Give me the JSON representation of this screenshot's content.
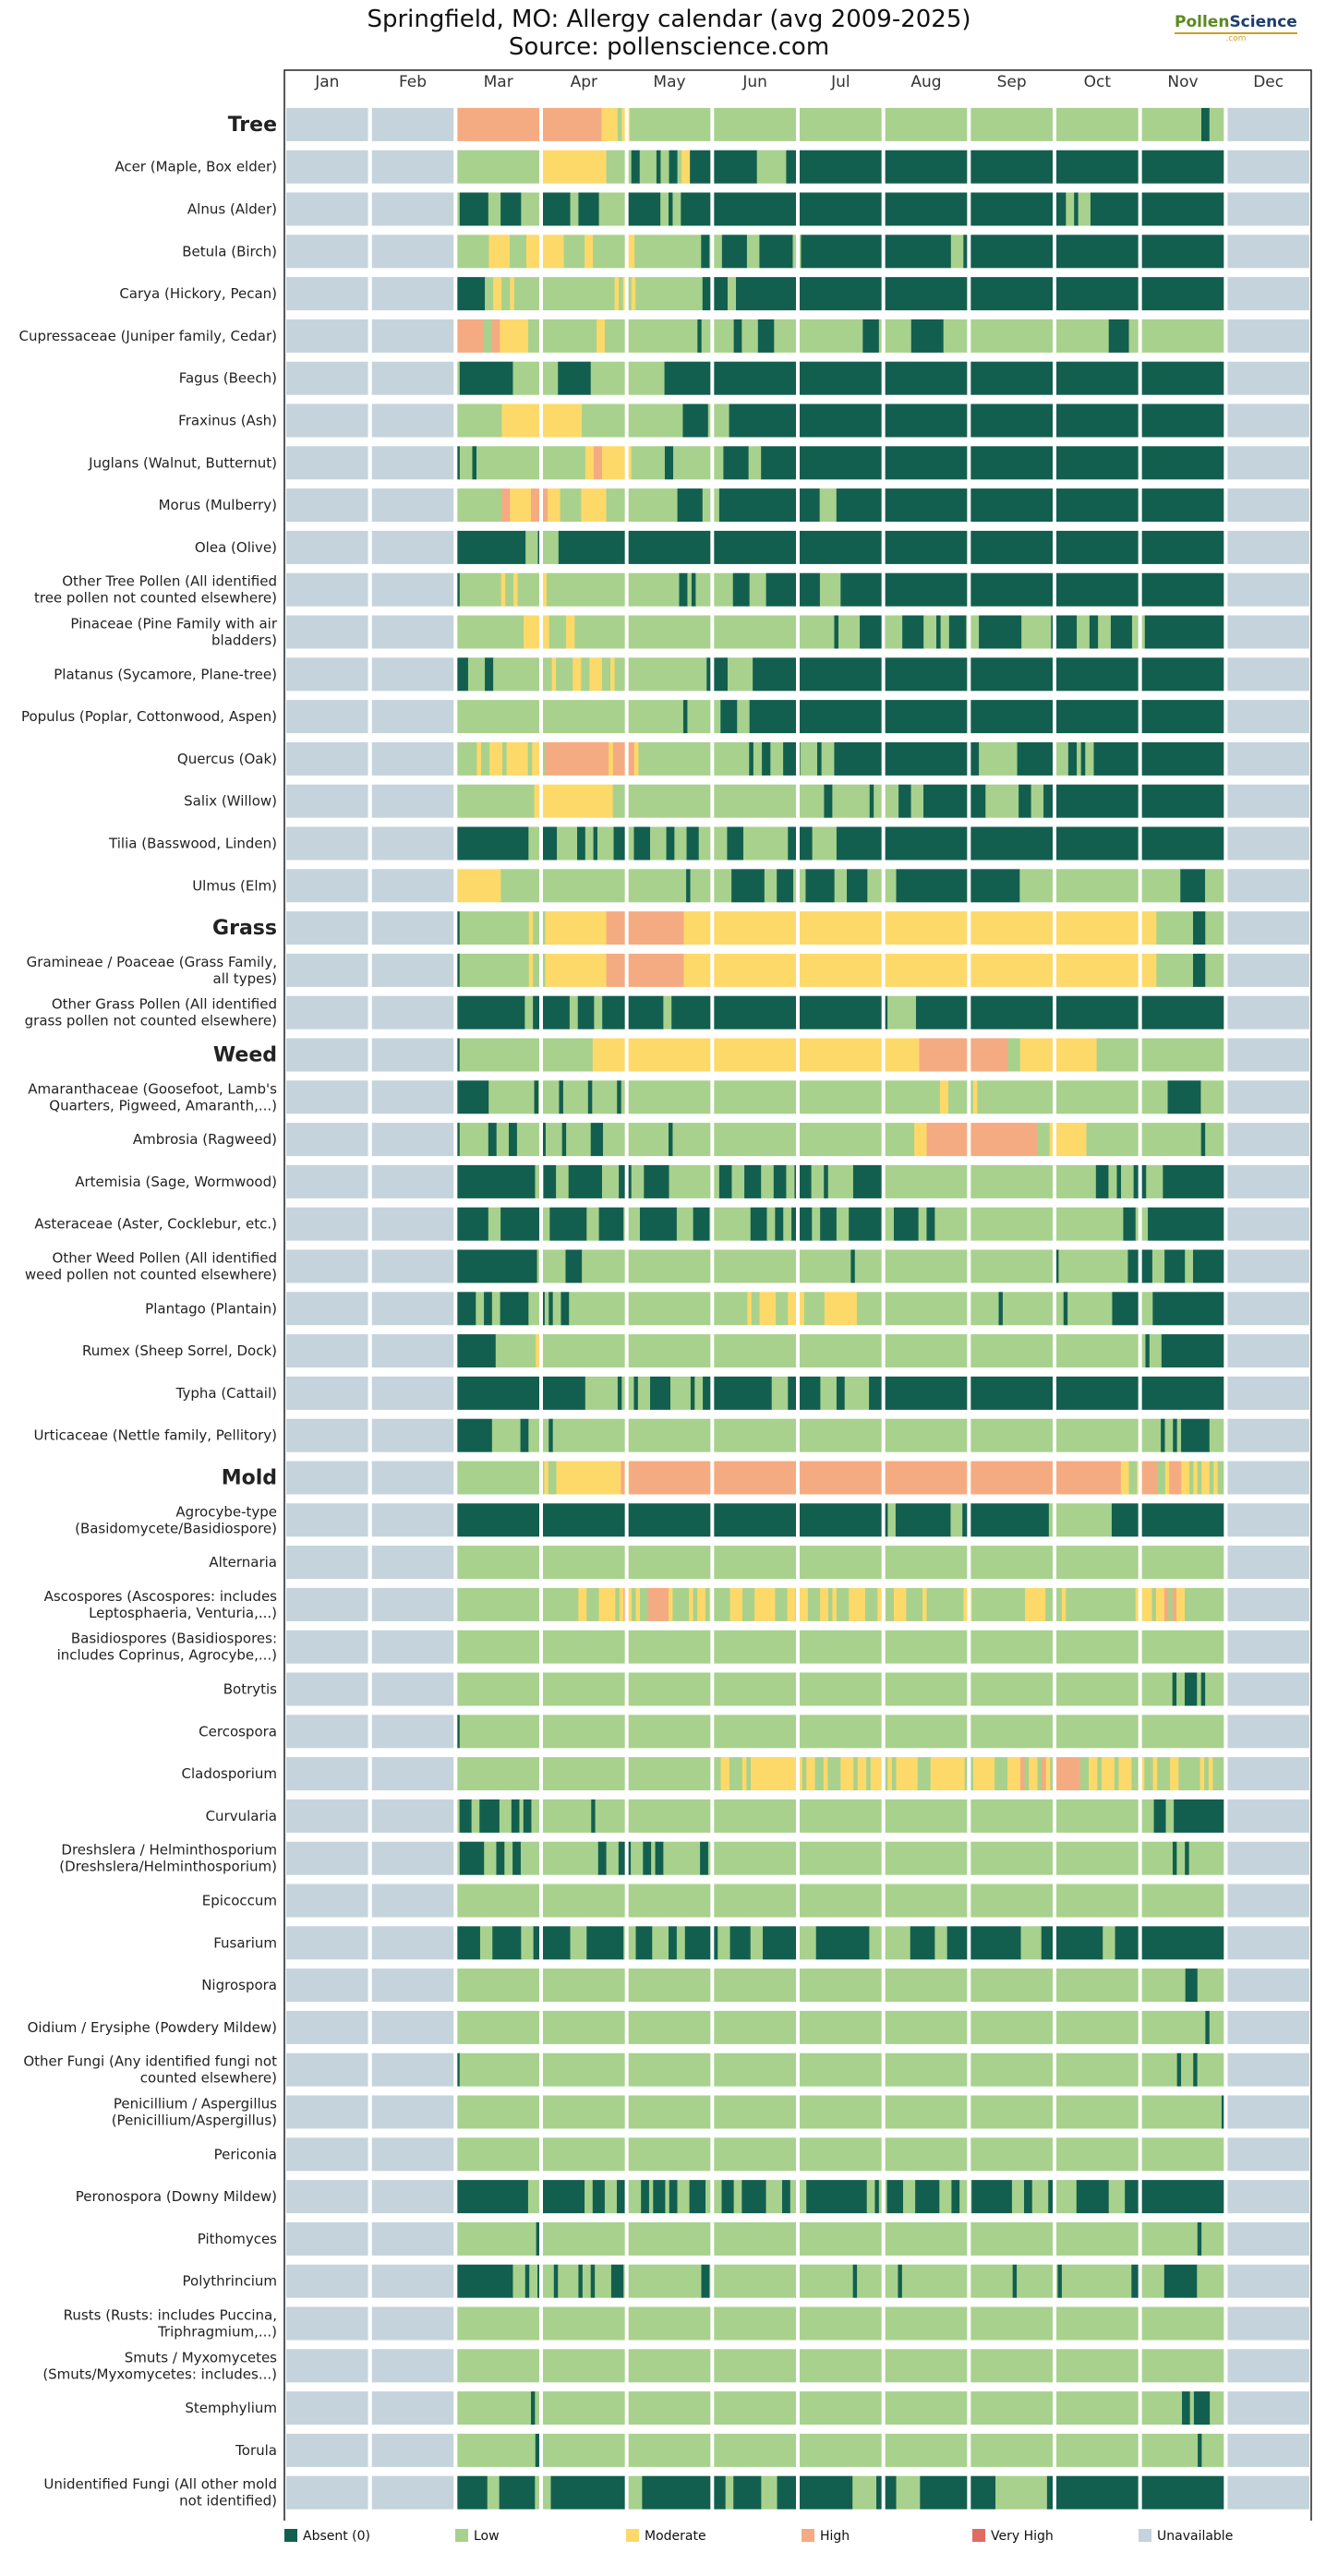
{
  "title": "Springfield, MO: Allergy calendar (avg 2009-2025)",
  "subtitle": "Source: pollenscience.com",
  "logo": {
    "part1": "Pollen",
    "part2": "Science",
    "sub": ".com"
  },
  "colors": {
    "absent": "#135f4f",
    "low": "#a8d18d",
    "moderate": "#fdd96a",
    "high": "#f5ab82",
    "very_high": "#e06b62",
    "unavailable": "#c5d3dc"
  },
  "chart_data": {
    "type": "heatmap",
    "x_labels": [
      "Jan",
      "Feb",
      "Mar",
      "Apr",
      "May",
      "Jun",
      "Jul",
      "Aug",
      "Sep",
      "Oct",
      "Nov",
      "Dec"
    ],
    "legend": [
      {
        "key": "absent",
        "label": "Absent (0)"
      },
      {
        "key": "low",
        "label": "Low"
      },
      {
        "key": "moderate",
        "label": "Moderate"
      },
      {
        "key": "high",
        "label": "High"
      },
      {
        "key": "very_high",
        "label": "Very High"
      },
      {
        "key": "unavailable",
        "label": "Unavailable"
      }
    ],
    "level_codes": {
      "A": "absent",
      "L": "low",
      "M": "moderate",
      "H": "high",
      "V": "very_high"
    },
    "data_start_month": "Mar",
    "data_end_month": "Nov",
    "rows": [
      {
        "label": "Tree",
        "category": true,
        "pattern": "HHHHHHHHHHHHHHHHHHHHHHHHHHHHHHHHHHHHMMMMLMMLLLLLLLLLLLLLLLLLLLLLLLLLLLLLLLLLLLLLLLLLLLLLLLLLLLLLLLLLLLLLLLLLLLLLLLLLLLLLLLLLLLLLLLLLLLLLLLLLLLLLLLLLLLLLLLLLLLLLLLLLLLLLLLLLLLLLLLLLLLLLAALLLL"
      },
      {
        "label": "Acer (Maple, Box elder)",
        "pattern": "LLLLLLLLLLLLLLLLLLLLMMMMMMMMMMMMMMMMLLLLLLAALLLLALLAALMMAAAAAAAAAAAAAAAALLLLLLLAAAAAAAAAAAAAAAAAAAAAAAAAAAAAAAAAAAAAAAAAAAAAAAAAAAAAAAAAAAAAAAAAAAAAAAAAAAAAAAAAAAAAAAAAAAAAAAAAAAAAAAAA"
      },
      {
        "label": "Alnus (Alder)",
        "pattern": "LAAAAAAALLLAAAAALLLLLAAAAAAALLAAAAALLLLLLLAAAAAAAALLALLAAAAAAAAAAAAAAAAAAAAAAAAAAAAAAAAAAAAAAAAAAAAAAAAAAAAAAAAAAAAAAAAAAAAAAAAAAAAAAAAAAAAAAAAAAAAAALLALLLAAAAAAAAAAAAAAAAAAAAAAAAAAAAAAAAA"
      },
      {
        "label": "Betula (Birch)",
        "pattern": "LLLLLLLLMMMMMLLLLMMMMMMMMMLLLLLMMLLLLLLLLMMLLLLLLLLLLLLLLLLAALLLAAAAAALLLAAAAAAAALLAAAAAAAAAAAAAAAAAAAAAAAAAAAAAAAAAAAALLLAAAAAAAAAAAAAAAAAAAAAAAAAAAAAAAAAAAAAAAAAAAAAAAAAAAAAAAAAAAAAAA"
      },
      {
        "label": "Carya (Hickory, Pecan)",
        "pattern": "AAAAAAALLMMLLMLLLLLLLLLLLLLLLLLLLLLLLLMLMLMLLLLLLLLLLLLLLLLAAAAAALLAAAAAAAAAAAAAAAAAAAAAAAAAAAAAAAAAAAAAAAAAAAAAAAAAAAAAAAAAAAAAAAAAAAAAAAAAAAAAAAAAAAAAAAAAAAAAAAAAAAAAAAAAAAAAAAAAAAAA"
      },
      {
        "label": "Cupressaceae (Juniper family, Cedar)",
        "pattern": "HHHHHHHLLHHMMMMMMMLLLLLLLLLLLLLLLLLMMLLLLLLLLLLLLLLLLLLLLLLLALLLLLLLLAALLLLAAAALLLLLLLLLLLLLLLLLLLLLLAAAALLLLLLLLAAAAAAAALLLLLLLLLLLLLLLLLLLLLLLLLLLLLLLLLLLLLLLLLAAAAALLLLLLLLLLLLLLLLLLLLLLLL"
      },
      {
        "label": "Fagus (Beech)",
        "pattern": "LAAAAAAAAAAAAALLLLLLLLLLLAAAAAAAALLLLLLLLLLLLLLLLLLAAAAAAAAAAAAAAAAAAAAAAAAAAAAAAAAAAAAAAAAAAAAAAAAAAAAAAAAAAAAAAAAAAAAAAAAAAAAAAAAAAAAAAAAAAAAAAAAAAAAAAAAAAAAAAAAAAAAAAAAAAAAAAAAAAAAAAAAA"
      },
      {
        "label": "Fraxinus (Ash)",
        "pattern": "LLLLLLLLLLLMMMMMMMMMMMMMMMMMMMLLLLLLLLLLLLLLLLLLLLLLLLAAAAAALLLLLAAAAAAAAAAAAAAAAAAAAAAAAAAAAAAAAAAAAAAAAAAAAAAAAAAAAAAAAAAAAAAAAAAAAAAAAAAAAAAAAAAAAAAAAAAAAAAAAAAAAAAAAAAAAAAAAAAAAAA"
      },
      {
        "label": "Juglans (Walnut, Butternut)",
        "pattern": "ALLLALLLLLLLLLLLLLLLLLLLLLLLLLLMMHHMMMMMMMLLLLLLLLAALLLLLLLLLLLLAAAAAALLLAAAAAAAAAAAAAAAAAAAAAAAAAAAAAAAAAAAAAAAAAAAAAAAAAAAAAAAAAAAAAAAAAAAAAAAAAAAAAAAAAAAAAAAAAAAAAAAAAAAAAAAAAAAAAAA"
      },
      {
        "label": "Morus (Mulberry)",
        "pattern": "LLLLLLLLLLLHHMMMMMHHHHMMMLLLLLMMMMMMLLLLLLLLLLLLLLLLLAAAAAALLLLAAAAAAAAAAAAAAAAAAAAAAAALLLLAAAAAAAAAAAAAAAAAAAAAAAAAAAAAAAAAAAAAAAAAAAAAAAAAAAAAAAAAAAAAAAAAAAAAAAAAAAAAAAAAAAAAAAAAAAAA"
      },
      {
        "label": "Olea (Olive)",
        "pattern": "AAAAAAAAAAAAAAAAALLLALLLLAAAAAAAAAAAAAAAAAAAAAAAAAAAAAAAAAAAAAAAAAAAAAAAAAAAAAAAAAAAAAAAAAAAAAAAAAAAAAAAAAAAAAAAAAAAAAAAAAAAAAAAAAAAAAAAAAAAAAAAAAAAAAAAAAAAAAAAAAAAAAAAAAAAAAAAAAAAAAAAAAA"
      },
      {
        "label": "Other Tree Pollen (All identified tree pollen not counted elsewhere)",
        "pattern": "ALLLLLLLLLLMLLMLLLLLLMLLLLLLLLLLLLLLLLLLLLLLLLLLLLLLLLAALALLLLLLLLLAAAALLLLAAAAAAAAAAAAALLLLLAAAAAAAAAAAAAAAAAAAAAAAAAAAAAAAAAAAAAAAAAAAAAAAAAAAAAAAAAAAAAAAAAAAAAAAAAAAAAAAAAAAAAAAAAAAAA"
      },
      {
        "label": "Pinaceae (Pine Family with air bladders)",
        "pattern": "LLLLLLLLLLLLLLLLMMMMMMLLLLMMLLLLLLLLLLLLLLLLLLLLLLLLLLLLLLLLLLLLLLLLLLLLLLLLLLLLLLLLLLLLLALLLLLAAAAAALLLLAAAAALLLALLAAAALLLAAAAAAAAAALLLLLLLAAAAAALLLAALLLAAAAALLLAAAAAAAAAAAAAAAAAAA"
      },
      {
        "label": "Platanus (Sycamore, Plane-tree)",
        "pattern": "AAALLLLAALLLLLLLLLLLLLLMLLLLMMLLMMMLLMLLLLLLLLLLLLLLLLLLLLLLAAAAALLLLLLAAAAAAAAAAAAAAAAAAAAAAAAAAAAAAAAAAAAAAAAAAAAAAAAAAAAAAAAAAAAAAAAAAAAAAAAAAAAAAAAAAAAAAAAAAAAAAAAAAAAAAAAAAAAAAAAA"
      },
      {
        "label": "Populus (Poplar, Cottonwood, Aspen)",
        "pattern": "LLLLLLLLLLLLLLLLLLLLLLLLLLLLLLLLLLLLLLLLLLLLLLLLLLLLLLLALLLLLLLLAAAALLLAAAAAAAAAAAAAAAAAAAAAAAAAAAAAAAAAAAAAAAAAAAAAAAAAAAAAAAAAAAAAAAAAAAAAAAAAAAAAAAAAAAAAAAAAAAAAAAAAAAAAAAAAAAAAAAAAAA"
      },
      {
        "label": "Quercus (Oak)",
        "pattern": "LLLLLMLLMMMLMMMMMLMMLHHHHHHHHHHHHHHHMHHHHHMLLLLLLLLLLLLLLLLLLLLLLLLLLALLAALLLAAAALLLLALLLAAAAAAAAAAAAAAAAAAAAAAAAAAAAAAAAAALLLLLLLLLAAAAAAAAALLLAALALLAAAAAAAAAAAAAAAAAAAAAAAAAAAAAAA"
      },
      {
        "label": "Salix (Willow)",
        "pattern": "LLLLLLLLLLLLLLLLLLLMMMMMMMMMMMMMMMMMMMLLLLLLLLLLLLLLLLLLLLLLLLLLLLLLLLLLLLLLLLLLLLLLLLLLLAALLLLLLLLLALLLLLLAAALLLAAAAAAAAAAAAAAALLLLLLLLAAALLLAAAAAAAAAAAAAAAAAAAAAAAAAAAAAAAAAAAAAAAAAAAA"
      },
      {
        "label": "Tilia (Basswood, Linden)",
        "pattern": "AAAAAAAAAAAAAAAAAALLLAAAALLLLLAALLALLLLAAALLAAAALLLLAALLLAAALLLLLLLAAAALLLLLLLLLLLAAAAAALLLLLLAAAAAAAAAAAAAAAAAAAAAAAAAAAAAAAAAAAAAAAAAAAAAAAAAAAAAAAAAAAAAAAAAAAAAAAAAAAAAAAAAAAAAAAAAAAAAAAA"
      },
      {
        "label": "Ulmus (Elm)",
        "pattern": "MMMMMMMMMMMLLLLLLLLLLLLLLLLLLLLLLLLLLLLLLLLLLLLLLLLLLLLLALLLLLLLLLLAAAAAAAALLLAAAALLLAAAAAAALLLAAAAALLLLLLLAAAAAAAAAAAAAAAAAAAAAAAAAAAAAALLLLLLLLLLLLLLLLLLLLLLLLLLLLLLLLLLLLLLLAAAAAALLLLL"
      },
      {
        "label": "Grass",
        "category": true,
        "pattern": "ALLLLLLLLLLLLLLLLLMLLLMMMMMMMMMMMMMMMHHHHHHHHHHHHHHHHHHHMMMMMMMMMMMMMMMMMMMMMMMMMMMMMMMMMMMMMMMMMMMMMMMMMMMMMMMMMMMMMMMMMMMMMMMMMMMMMMMMMMMMMMMMMMMMMMMMMMMMMMMMMMMMMMMMMMMMLLLLLLLLLAAALLLLL"
      },
      {
        "label": "Gramineae / Poaceae (Grass Family, all types)",
        "pattern": "ALLLLLLLLLLLLLLLLLMLLLMMMMMMMMMMMMMMMHHHHHHHHHHHHHHHHHHHMMMMMMMMMMMMMMMMMMMMMMMMMMMMMMMMMMMMMMMMMMMMMMMMMMMMMMMMMMMMMMMMMMMMMMMMMMMMMMMMMMMMMMMMMMMMMMMMMMMMMMMMMMMMMMMMMMMMLLLLLLLLLAAALLLLL"
      },
      {
        "label": "Other Grass Pollen (All identified grass pollen not counted elsewhere)",
        "pattern": "AAAAAAAAAAAAAAAAALLAAAAAAAAALLAAAALLAAAAAAAAAAAAAAALLAAAAAAAAAAAAAAAAAAAAAAAAAAAAAAAAAAAAAAAAAAAAAAAAAAAAALLLLLLLAAAAAAAAAAAAAAAAAAAAAAAAAAAAAAAAAAAAAAAAAAAAAAAAAAAAAAAAAAAAAAAAAAAAAAAAAAAA"
      },
      {
        "label": "Weed",
        "category": true,
        "pattern": "ALLLLLLLLLLLLLLLLLLLLLLLLLLLLLLLLLMMMMMMMMMMMMMMMMMMMMMMMMMMMMMMMMMMMMMMMMMMMMMMMMMMMMMMMMMMMMMMMMMMMMMMMMMMMMMMMMMHHHHHHHHHHHHHHHHHHHHHHLLLMMMMMMMMMMMMMMMMMMMLLLLLLLLLLLLLLLLLLLLLLLLLLLLLLLL"
      },
      {
        "label": "Amaranthaceae (Goosefoot, Lamb's Quarters, Pigweed, Amaranth,...)",
        "pattern": "AAAAAAAALLLLLLLLLLLALLLLLALLLLLLALLLLLLALLLLLLLLLLLLLLLLLLLLLLLLLLLLLLLLLLLLLLLLLLLLLLLLLLLLLLLLLLLLLLLLLLLLLLLLLLLLLMMLLLLLLMLLLLLLLLLLLLLLLLLLLLLLLLLLLLLLLLLLLLLLLLLLLLLLAAAAAAAALLLLLL"
      },
      {
        "label": "Ambrosia (Ragweed)",
        "pattern": "ALLLLLLLAALLLAALLLLLLALLLLALLLLLLAAALLLLLLLLLLLLLLLLALLLLLLLLLLLLLLLLLLLLLLLLLLLLLLLLLLLLLLLLLLLLLLLLLLLLLLLLLLLMMMHHHHHHHHHHHHHHHHHHHHHHHHHHHLLLMMMMMMMMMLLLLLLLLLLLLLLLLLLLLLLLLLLLLALLLLL"
      },
      {
        "label": "Artemisia (Sage, Wormwood)",
        "pattern": "AAAAAAAAAAAAAAAAAAALLAAALLLAAAAAAAALLLLAAALLLAAAAAALLLLLLLLLLLLAAALLLAAAALLLAAALLAAAALLLALLLLLLAAAAAAALLLLLLLLLLLLLLLLLLLLLLLLLLLLLLLLLLLLLLLLLLLLLLLLLLLAAALLALLLAAALLLLAAAAAAAAAAAAAAA"
      },
      {
        "label": "Asteraceae (Aster, Cocklebur, etc.)",
        "pattern": "AAAAAAAALLLAAAAAAAAAALLAAAAAAAAALLLAAAAAALLLLAAAAAAAAALLLLAAAALLLLLLLLLLAAAALLAALLAAAAALLAAAALLLAAAAAAAALLLAAAAAALLAALLLLLLLLLLLLLLLLLLLLLLLLLLLLLLLLLLLLLLLLLLLLLLAAALLLAAAAAAAAAAAAAAAAAAA"
      },
      {
        "label": "Other Weed Pollen (All identified weed pollen not counted elsewhere)",
        "pattern": "AAAAAAAAAAAAAAAAAAAALLLLLLLAAAALLLLLLLLLLLLLLLLLLLLLLLLLLLLLLLLLLLLLLLLLLLLLLLLLLLLLLLLLLLLLLLLLLALLLLLLLLLLLLLLLLLLLLLLLLLLLLLLLLLLLLLLLLLLLLLLLLLALLLLLLLLLLLLLLLLLAAAAAALLLAAAAALLAAAAAAAA"
      },
      {
        "label": "Plantago (Plantain)",
        "pattern": "AAAAALLAALLAAAAAAALLLALALLAALLLLLLLLLLLLLLLLLLLLLLLLLLLLLLLLLLLLLLLLLLLLMLLMMMMLLLMMMMLLLLLMMMMMMMMLLLLLLLLLLLLLLLLLLLLLLLLLLLLLLLLLLLALLLLLLLLLLLLLLLALLLLLLLLLLLAAAAAAALLLAAAAAAAAAAAAAAAAAA"
      },
      {
        "label": "Rumex (Sheep Sorrel, Dock)",
        "pattern": "AAAAAAAAAALLLLLLLLLLMLLLLLLLLLLLLLLLLLLLLLLLLLLLLLLLLLLLLLLLLLLLLLLLLLLLLLLLLLLLLLLLLLLLLLLLLLLLLLLLLLLLLLLLLLLLLLLLLLLLLLLLLLLLLLLLLLLLLLLLLLLLLLLLLLLLLLLLLLLLLLLLLLLLLLLLALLLAAAAAAAAAAAAAAAA"
      },
      {
        "label": "Typha (Cattail)",
        "pattern": "AAAAAAAAAAAAAAAAAAAAAAAAAAAAAAAALLLLLLLLALLLALLLAAAAALLLLLALLAAAAAAAAAAAAAAAAALLLLAAAAAAAALLLLAALLLLLLAAAAAAAAAAAAAAAAAAAAAAAAAAAAAAAAAAAAAAAAAAAAAAAAAAAAAAAAAAAAAAAAAAAAAAAAAAAAAAAAAAAAAAAA"
      },
      {
        "label": "Urticaceae (Nettle family, Pellitory)",
        "pattern": "AAAAAAAAALLLLLLLAALLLLLALLLLLLLLLLLLLLLLLLLLLLLLLLLLLLLLLLLLLLLLLLLLLLLLLLLLLLLLLLLLLLLLLLLLLLLLLLLLLLLLLLLLLLLLLLLLLLLLLLLLLLLLLLLLLLLLLLLLLLLLLLLLLLLLLLLLLLLLLLLLLLLLLLLLLLALLALAAAAAAALLLL"
      },
      {
        "label": "Mold",
        "category": true,
        "pattern": "LLLLLLLLLLLLLLLLLLLLLLMLLMMMMMMMMMMMMMMMMHMHHHHHHHHHHHHHHHHHHHHHHHHHHHHHHHHHHHHHHHHHHHHHHHHHHHHHHHHHHHHHHHHHHHHHHHHHHHHHHHHHHHHHHHHHHHHHHHHHHHHHHHHHHHHHHHHHHHHHHHHHHMMLLMHHHHLLMHHHMMLMLMMLMLL"
      },
      {
        "label": "Agrocybe-type (Basidomycete/Basidiospore)",
        "pattern": "AAAAAAAAAAAAAAAAAAAAAAAAAAAAAAAAAAAAAAAAAAAAAAAAAAAAAAAAAAAAAAAAAAAAAAAAAAAAAAAAAAAAAAAAAAAAAAAAAAAAAAAAAAAAAALLAAAAAAAAAAAAAALLLAAAAAAAAAAAAAAAAAAAAAALLLLLLLLLLLLLLLLAAAAAAAAAAAAAAAAAAAAAAAAAAAAA"
      },
      {
        "label": "Alternaria",
        "pattern": "LLLLLLLLLLLLLLLLLLLLLLLLLLLLLLLLLLLLLLLLLLLLLLLLLLLLLLLLLLLLLLLLLLLLLLLLLLLLLLLLLLLLLLLLLLLLLLLLLLLLLLLLLLLLLLLLLLLLLLLLLLLLLLLLLLLLLLLLLLLLLLLLLLLLLLLLLLLLLLLLLLLLLLLLLLLLLLLLLLLLLLLLLLLL"
      },
      {
        "label": "Ascospores (Ascospores: includes Leptosphaeria, Venturia,...)",
        "pattern": "LLLLLLLLLLLLLLLLLLLLLLLLLLLLLLMMLLLMMMMLMHMLMLLHHHHHMLLLLMLMMLMLLLLMMMLLLMMMMMLLLMMLMMLLLMMLMLLLMMMMLLLMMLLMMMLLLLMLLLLLLLLLMMLLLLLLLLLLLLLMMMMMLLLLMLLLLLLLLLLLLLLLLLMMMMLMMHLHMMLLLLLLLLLL"
      },
      {
        "label": "Basidiospores (Basidiospores: includes Coprinus, Agrocybe,...)",
        "pattern": "LLLLLLLLLLLLLLLLLLLLLLLLLLLLLLLLLLLLLLLLLLLLLLLLLLLLLLLLLLLLLLLLLLLLLLLLLLLLLLLLLLLLLLLLLLLLLLLLLLLLLLLLLLLLLLLLLLLLLLLLLLLLLLLLLLLLLLLLLLLLLLLLLLLLLLLLLLLLLLLLLLLLLLLLLLLLLLLLLLLLLLLLLLLL"
      },
      {
        "label": "Botrytis",
        "pattern": "LLLLLLLLLLLLLLLLLLLLLLLLLLLLLLLLLLLLLLLLLLLLLLLLLLLLLLLLLLLLLLLLLLLLLLLLLLLLLLLLLLLLLLLLLLLLLLLLLLLLLLLLLLLLLLLLLLLLLLLLLLLLLLLLLLLLLLLLLLLLLLLLLLLLLLLLLLLLLLLLLLLLLLLLLLLLLLLALLAAALALLLLL"
      },
      {
        "label": "Cercospora",
        "pattern": "ALLLLLLLLLLLLLLLLLLLLLLLLLLLLLLLLLLLLLLLLLLLLLLLLLLLLLLLLLLLLLLLLLLLLLLLLLLLLLLLLLLLLLLLLLLLLLLLLLLLLLLLLLLLLLLLLLLLLLLLLLLLLLLLLLLLLLLLLLLLLLLLLLLLLLLLLLLLLLLLLLLLLLLLLLLLLLLLLLLLLLLLLLLLL"
      },
      {
        "label": "Cladosporium",
        "pattern": "LLLLLLLLLLLLLLLLLLLLLLLLLLLLLLLLLLLLLLLLLLLLLLLLLLLLLLLLLLLLLLMMLLLMLMMMMMMMMMMMMLMMLLMLLLMMMLMMLMMMLMLMMMMMLLLMMMMMMMMLLMMMMMLLLMMMHLMMLHMLHHHHHHLLMMLMMMLMMMLLMLLMLLLMMLLLLLMLMLLL"
      },
      {
        "label": "Curvularia",
        "pattern": "LAAALLAAAAALLLAALAALLLLLLLLLLLLLLLALLLLLLLLLLLLLLLLLLLLLLLLLLLLLLLLLLLLLLLLLLLLLLLLLLLLLLLLLLLLLLLLLLLLLLLLLLLLLLLLLLLLLLLLLLLLLLLLLLLLLLLLLLLLLLLLLLLLLLLLLLLLLLLLLLLLLLLLLLLLAAALLAAAAAAAAAAAAA"
      },
      {
        "label": "Dreshslera / Helminthosporium (Dreshslera/Helminthosporium)",
        "pattern": "LAAAAAALLLAALLAALLLLLLLLLLLLLLLLLLLAALLLAAALLLAALAALLLLLLLLLAALLLLLLLLLLLLLLLLLLLLLLLLLLLLLLLLLLLLLLLLLLLLLLLLLLLLLLLLLLLLLLLLLLLLLLLLLLLLLLLLLLLLLLLLLLLLLLLLLLLLLLLLLLLLLLLLLLALLALLLLLLLLL"
      },
      {
        "label": "Epicoccum",
        "pattern": "LLLLLLLLLLLLLLLLLLLLLLLLLLLLLLLLLLLLLLLLLLLLLLLLLLLLLLLLLLLLLLLLLLLLLLLLLLLLLLLLLLLLLLLLLLLLLLLLLLLLLLLLLLLLLLLLLLLLLLLLLLLLLLLLLLLLLLLLLLLLLLLLLLLLLLLLLLLLLLLLLLLLLLLLLLLLLLLLLLLLLLLLLLLL"
      },
      {
        "label": "Fusarium",
        "pattern": "AAAAAALLLAAAAAAALLLAAAAAAAAALLLLAAAAAAAAALLLAAAALLLLAALLAAAAAAAALLLAAAAALLLAAAAAAAAALLLLAAAAAAAAAAAAALLLLLLLLLLAAAAAALLLAAAAAAAAAAAAAAAAAALLLLLAAAAAAAAAAAAAAALLLAAAAAAAAAAAAAAAAAAAAAAAAAAA"
      },
      {
        "label": "Nigrospora",
        "pattern": "LLLLLLLLLLLLLLLLLLLLLLLLLLLLLLLLLLLLLLLLLLLLLLLLLLLLLLLLLLLLLLLLLLLLLLLLLLLLLLLLLLLLLLLLLLLLLLLLLLLLLLLLLLLLLLLLLLLLLLLLLLLLLLLLLLLLLLLLLLLLLLLLLLLLLLLLLLLLLLLLLLLLLLLLLLLLLLLLLLLLLAAALLLLLLL"
      },
      {
        "label": "Oidium / Erysiphe (Powdery Mildew)",
        "pattern": "LLLLLLLLLLLLLLLLLLLLLLLLLLLLLLLLLLLLLLLLLLLLLLLLLLLLLLLLLLLLLLLLLLLLLLLLLLLLLLLLLLLLLLLLLLLLLLLLLLLLLLLLLLLLLLLLLLLLLLLLLLLLLLLLLLLLLLLLLLLLLLLLLLLLLLLLLLLLLLLLLLLLLLLLLLLLLLLLLLLLLLLLLALLLL"
      },
      {
        "label": "Other Fungi (Any identified fungi not counted elsewhere)",
        "pattern": "ALLLLLLLLLLLLLLLLLLLLLLLLLLLLLLLLLLLLLLLLLLLLLLLLLLLLLLLLLLLLLLLLLLLLLLLLLLLLLLLLLLLLLLLLLLLLLLLLLLLLLLLLLLLLLLLLLLLLLLLLLLLLLLLLLLLLLLLLLLLLLLLLLLLLLLLLLLLLLLLLLLLLLLLLLLLLLLLLLALLLALLLLLLL"
      },
      {
        "label": "Penicillium / Aspergillus (Penicillium/Aspergillus)",
        "pattern": "LLLLLLLLLLLLLLLLLLLLLLLLLLLLLLLLLLLLLLLLLLLLLLLLLLLLLLLLLLLLLLLLLLLLLLLLLLLLLLLLLLLLLLLLLLLLLLLLLLLLLLLLLLLLLLLLLLLLLLLLLLLLLLLLLLLLLLLLLLLLLLLLLLLLLLLLLLLLLLLLLLLLLLLLLLLLLLLLLLLLLLLLLLLLLA"
      },
      {
        "label": "Periconia",
        "pattern": "LLLLLLLLLLLLLLLLLLLLLLLLLLLLLLLLLLLLLLLLLLLLLLLLLLLLLLLLLLLLLLLLLLLLLLLLLLLLLLLLLLLLLLLLLLLLLLLLLLLLLLLLLLLLLLLLLLLLLLLLLLLLLLLLLLLLLLLLLLLLLLLLLLLLLLLLLLLLLLLLLLLLLLLLLLLLLLLLLLLLLLLLLLLLLL"
      },
      {
        "label": "Peronospora (Downy Mildew)",
        "pattern": "AAAAAAAAAAAAAAAAAALLLAAAAAAAAAAALLAAALLLAALLLLAALAAALAALLLAAAALLLLAAALLAAAAAALLLLAALLLLAAAAAAAAAAAAAAALLALLAAAALLLAAAAAALLLAALLLAAAAAAAAAALLLAALLLLAALLLLLAAAAAAAALLLLAAAAAAAAAAAAAAAAAAAAAAAAA"
      },
      {
        "label": "Pithomyces",
        "pattern": "LLLLLLLLLLLLLLLLLLLLALLLLLLLLLLLLLLLLLLLLLLLLLLLLLLLLLLLLLLLLLLLLLLLLLLLLLLLLLLLLLLLLLLLLLLLLLLLLLLLLLLLLLLLLLLLLLLLLLLLLLLLLLLLLLLLLLLLLLLLLLLLLLLLLLLLLLLLLLLLLLLLLLLLLLLLLLLLLLLLLLLLALLLLLL"
      },
      {
        "label": "Polythrincium",
        "pattern": "AAAAAAAAAAAAAALLLALLALLLALLLLLALLALLLLAAALLLLLLLLLLLLLLLLLLLAALLLLLLLLLLLLLLLLLLLLLLLLLLLLLLLLLLLALLLLLLLLLLALLLLLLLLLLLLLLLLLLLLLLLLLLLALLLLLLLLLLALLLLLLLLLLLLLLLLLAALLLLLLAAAAAAAALLLLLLL"
      },
      {
        "label": "Rusts (Rusts: includes Puccina, Triphragmium,...)",
        "pattern": "LLLLLLLLLLLLLLLLLLLLLLLLLLLLLLLLLLLLLLLLLLLLLLLLLLLLLLLLLLLLLLLLLLLLLLLLLLLLLLLLLLLLLLLLLLLLLLLLLLLLLLLLLLLLLLLLLLLLLLLLLLLLLLLLLLLLLLLLLLLLLLLLLLLLLLLLLLLLLLLLLLLLLLLLLLLLLLLLLLLLLLLLLLLLL"
      },
      {
        "label": "Smuts / Myxomycetes (Smuts/Myxomycetes: includes...)",
        "pattern": "LLLLLLLLLLLLLLLLLLLLLLLLLLLLLLLLLLLLLLLLLLLLLLLLLLLLLLLLLLLLLLLLLLLLLLLLLLLLLLLLLLLLLLLLLLLLLLLLLLLLLLLLLLLLLLLLLLLLLLLLLLLLLLLLLLLLLLLLLLLLLLLLLLLLLLLLLLLLLLLLLLLLLLLLLLLLLLLLLLLLLLLLLLLLLLLL"
      },
      {
        "label": "Stemphylium",
        "pattern": "LLLLLLLLLLLLLLLLLLLALLLLLLLLLLLLLLLLLLLLLLLLLLLLLLLLLLLLLLLLLLLLLLLLLLLLLLLLLLLLLLLLLLLLLLLLLLLLLLLLLLLLLLLLLLLLLLLLLLLLLLLLLLLLLLLLLLLLLLLLLLLLLLLLLLLLLLLLLLLLLLLLLLLLLLLLLLLLLLLLLLLAALAAAALLLL"
      },
      {
        "label": "Torula",
        "pattern": "LLLLLLLLLLLLLLLLLLLLALLLLLLLLLLLLLLLLLLLLLLLLLLLLLLLLLLLLLLLLLLLLLLLLLLLLLLLLLLLLLLLLLLLLLLLLLLLLLLLLLLLLLLLLLLLLLLLLLLLLLLLLLLLLLLLLLLLLLLLLLLLLLLLLLLLLLLLLLLLLLLLLLLLLLLLLLLLLLLLLLLLLLALLLLLL"
      },
      {
        "label": "Unidentified Fungi (All other mold not identified)",
        "pattern": "AAAAAAAALLLAAAAAAAAALLLLAAAAAAAAAAAAAAAAAAALLLLAAAAAAAAAAAAAAAAAAAAALLAAAAAAALLLLAAAAAAAAAAAAAAAAAAALLLLLLAAAAALLLLLLAAAAAAAAAAAAAAAAAAALLLLLLLLLLLLLAAAAAAAAAAAAAAAAAAAAAAAAAAAAAAAAAAAAAAAAAAAAA"
      }
    ]
  }
}
